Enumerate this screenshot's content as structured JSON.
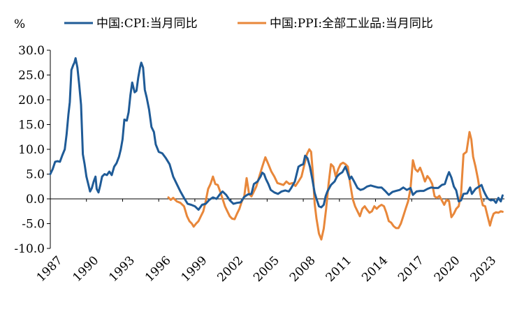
{
  "chart_data": {
    "type": "line",
    "ylabel": "%",
    "ylim": [
      -10,
      30
    ],
    "y_ticks": [
      "30.0",
      "25.0",
      "20.0",
      "15.0",
      "10.0",
      "5.0",
      "0.0",
      "-5.0",
      "-10.0"
    ],
    "y_tick_values": [
      30,
      25,
      20,
      15,
      10,
      5,
      0,
      -5,
      -10
    ],
    "x_range": [
      1987,
      2024.7
    ],
    "x_ticks": [
      "1987",
      "1990",
      "1993",
      "1996",
      "1999",
      "2002",
      "2005",
      "2008",
      "2011",
      "2014",
      "2017",
      "2020",
      "2023"
    ],
    "x_tick_values": [
      1987,
      1990,
      1993,
      1996,
      1999,
      2002,
      2005,
      2008,
      2011,
      2014,
      2017,
      2020,
      2023
    ],
    "series": [
      {
        "name": "中国:CPI:当月同比",
        "color": "#1F5B97",
        "points": [
          [
            1987.0,
            5.0
          ],
          [
            1987.2,
            6.0
          ],
          [
            1987.4,
            7.5
          ],
          [
            1987.6,
            7.6
          ],
          [
            1987.8,
            7.5
          ],
          [
            1988.0,
            8.8
          ],
          [
            1988.2,
            10.0
          ],
          [
            1988.35,
            13.0
          ],
          [
            1988.5,
            17.0
          ],
          [
            1988.62,
            19.5
          ],
          [
            1988.75,
            26.0
          ],
          [
            1988.9,
            27.0
          ],
          [
            1989.0,
            27.5
          ],
          [
            1989.1,
            28.4
          ],
          [
            1989.25,
            26.5
          ],
          [
            1989.4,
            23.0
          ],
          [
            1989.55,
            19.0
          ],
          [
            1989.7,
            9.0
          ],
          [
            1989.85,
            7.0
          ],
          [
            1990.0,
            4.5
          ],
          [
            1990.15,
            3.0
          ],
          [
            1990.3,
            1.5
          ],
          [
            1990.45,
            2.2
          ],
          [
            1990.6,
            3.5
          ],
          [
            1990.75,
            4.5
          ],
          [
            1990.85,
            2.0
          ],
          [
            1991.0,
            1.3
          ],
          [
            1991.15,
            2.8
          ],
          [
            1991.3,
            4.5
          ],
          [
            1991.5,
            5.0
          ],
          [
            1991.7,
            4.8
          ],
          [
            1991.9,
            5.5
          ],
          [
            1992.1,
            4.8
          ],
          [
            1992.3,
            6.5
          ],
          [
            1992.5,
            7.2
          ],
          [
            1992.7,
            8.5
          ],
          [
            1992.85,
            10.0
          ],
          [
            1993.0,
            12.0
          ],
          [
            1993.15,
            16.0
          ],
          [
            1993.35,
            15.8
          ],
          [
            1993.5,
            17.5
          ],
          [
            1993.65,
            21.0
          ],
          [
            1993.8,
            23.5
          ],
          [
            1994.0,
            21.5
          ],
          [
            1994.15,
            21.8
          ],
          [
            1994.3,
            24.5
          ],
          [
            1994.45,
            26.5
          ],
          [
            1994.55,
            27.5
          ],
          [
            1994.7,
            26.5
          ],
          [
            1994.85,
            22.0
          ],
          [
            1995.0,
            20.5
          ],
          [
            1995.2,
            18.0
          ],
          [
            1995.4,
            14.5
          ],
          [
            1995.6,
            13.5
          ],
          [
            1995.75,
            11.0
          ],
          [
            1996.0,
            9.5
          ],
          [
            1996.3,
            9.2
          ],
          [
            1996.6,
            8.2
          ],
          [
            1996.9,
            7.0
          ],
          [
            1997.2,
            4.5
          ],
          [
            1997.5,
            3.0
          ],
          [
            1997.8,
            1.5
          ],
          [
            1998.1,
            0.2
          ],
          [
            1998.4,
            -1.0
          ],
          [
            1998.7,
            -1.2
          ],
          [
            1999.0,
            -1.5
          ],
          [
            1999.3,
            -2.2
          ],
          [
            1999.6,
            -1.2
          ],
          [
            1999.9,
            -1.0
          ],
          [
            2000.2,
            -0.2
          ],
          [
            2000.5,
            0.3
          ],
          [
            2000.8,
            0.0
          ],
          [
            2001.1,
            1.0
          ],
          [
            2001.3,
            1.5
          ],
          [
            2001.6,
            0.8
          ],
          [
            2001.9,
            -0.3
          ],
          [
            2002.2,
            -1.0
          ],
          [
            2002.5,
            -0.8
          ],
          [
            2002.8,
            -0.7
          ],
          [
            2003.1,
            0.4
          ],
          [
            2003.4,
            0.9
          ],
          [
            2003.7,
            1.0
          ],
          [
            2003.9,
            3.0
          ],
          [
            2004.2,
            3.5
          ],
          [
            2004.45,
            4.5
          ],
          [
            2004.6,
            5.3
          ],
          [
            2004.75,
            5.0
          ],
          [
            2004.9,
            4.0
          ],
          [
            2005.1,
            3.0
          ],
          [
            2005.3,
            1.8
          ],
          [
            2005.6,
            1.3
          ],
          [
            2005.9,
            1.0
          ],
          [
            2006.2,
            1.5
          ],
          [
            2006.5,
            1.7
          ],
          [
            2006.8,
            1.5
          ],
          [
            2007.0,
            2.2
          ],
          [
            2007.3,
            3.5
          ],
          [
            2007.6,
            6.5
          ],
          [
            2007.8,
            6.8
          ],
          [
            2008.0,
            7.0
          ],
          [
            2008.15,
            8.7
          ],
          [
            2008.35,
            8.2
          ],
          [
            2008.55,
            6.5
          ],
          [
            2008.75,
            4.0
          ],
          [
            2008.95,
            1.2
          ],
          [
            2009.1,
            0.0
          ],
          [
            2009.3,
            -1.5
          ],
          [
            2009.5,
            -1.7
          ],
          [
            2009.7,
            -1.2
          ],
          [
            2009.85,
            0.5
          ],
          [
            2010.0,
            1.5
          ],
          [
            2010.3,
            2.8
          ],
          [
            2010.6,
            3.5
          ],
          [
            2010.8,
            4.5
          ],
          [
            2011.0,
            5.0
          ],
          [
            2011.25,
            5.4
          ],
          [
            2011.5,
            6.5
          ],
          [
            2011.65,
            5.5
          ],
          [
            2011.85,
            4.0
          ],
          [
            2012.0,
            4.5
          ],
          [
            2012.25,
            3.4
          ],
          [
            2012.5,
            2.2
          ],
          [
            2012.75,
            1.8
          ],
          [
            2013.0,
            2.0
          ],
          [
            2013.3,
            2.5
          ],
          [
            2013.6,
            2.7
          ],
          [
            2013.9,
            2.5
          ],
          [
            2014.2,
            2.3
          ],
          [
            2014.5,
            2.3
          ],
          [
            2014.8,
            1.6
          ],
          [
            2015.1,
            0.8
          ],
          [
            2015.4,
            1.4
          ],
          [
            2015.7,
            1.6
          ],
          [
            2016.0,
            1.8
          ],
          [
            2016.3,
            2.3
          ],
          [
            2016.6,
            1.8
          ],
          [
            2016.9,
            2.2
          ],
          [
            2017.1,
            0.8
          ],
          [
            2017.4,
            1.5
          ],
          [
            2017.7,
            1.6
          ],
          [
            2018.0,
            1.6
          ],
          [
            2018.3,
            2.0
          ],
          [
            2018.6,
            2.3
          ],
          [
            2018.9,
            2.2
          ],
          [
            2019.2,
            2.2
          ],
          [
            2019.5,
            2.8
          ],
          [
            2019.75,
            3.0
          ],
          [
            2019.95,
            4.5
          ],
          [
            2020.1,
            5.4
          ],
          [
            2020.3,
            4.3
          ],
          [
            2020.5,
            2.5
          ],
          [
            2020.7,
            1.7
          ],
          [
            2020.9,
            -0.5
          ],
          [
            2021.1,
            -0.3
          ],
          [
            2021.3,
            1.0
          ],
          [
            2021.6,
            1.1
          ],
          [
            2021.85,
            2.3
          ],
          [
            2022.0,
            1.0
          ],
          [
            2022.3,
            2.0
          ],
          [
            2022.6,
            2.5
          ],
          [
            2022.8,
            2.8
          ],
          [
            2022.95,
            1.8
          ],
          [
            2023.1,
            1.0
          ],
          [
            2023.3,
            0.1
          ],
          [
            2023.55,
            -0.3
          ],
          [
            2023.8,
            -0.2
          ],
          [
            2024.0,
            -0.8
          ],
          [
            2024.2,
            0.2
          ],
          [
            2024.4,
            -0.5
          ],
          [
            2024.55,
            0.7
          ]
        ]
      },
      {
        "name": "中国:PPI:全部工业品:当月同比",
        "color": "#E8873A",
        "points": [
          [
            1996.8,
            0.3
          ],
          [
            1997.0,
            -0.2
          ],
          [
            1997.2,
            0.2
          ],
          [
            1997.5,
            -0.5
          ],
          [
            1997.8,
            -0.8
          ],
          [
            1998.1,
            -1.5
          ],
          [
            1998.35,
            -3.5
          ],
          [
            1998.55,
            -4.5
          ],
          [
            1998.75,
            -5.0
          ],
          [
            1998.9,
            -5.6
          ],
          [
            1999.1,
            -5.0
          ],
          [
            1999.3,
            -4.5
          ],
          [
            1999.5,
            -3.5
          ],
          [
            1999.7,
            -2.5
          ],
          [
            1999.9,
            -0.5
          ],
          [
            2000.1,
            2.0
          ],
          [
            2000.3,
            3.0
          ],
          [
            2000.5,
            4.5
          ],
          [
            2000.7,
            3.0
          ],
          [
            2000.9,
            2.8
          ],
          [
            2001.1,
            1.5
          ],
          [
            2001.3,
            0.0
          ],
          [
            2001.5,
            -1.5
          ],
          [
            2001.7,
            -2.5
          ],
          [
            2001.9,
            -3.5
          ],
          [
            2002.1,
            -4.0
          ],
          [
            2002.3,
            -4.1
          ],
          [
            2002.5,
            -3.0
          ],
          [
            2002.7,
            -2.0
          ],
          [
            2002.9,
            -0.5
          ],
          [
            2003.1,
            0.5
          ],
          [
            2003.3,
            4.2
          ],
          [
            2003.5,
            1.0
          ],
          [
            2003.7,
            0.5
          ],
          [
            2003.9,
            1.5
          ],
          [
            2004.1,
            2.5
          ],
          [
            2004.35,
            4.5
          ],
          [
            2004.6,
            6.5
          ],
          [
            2004.85,
            8.4
          ],
          [
            2005.1,
            7.0
          ],
          [
            2005.35,
            5.5
          ],
          [
            2005.6,
            4.5
          ],
          [
            2005.85,
            3.2
          ],
          [
            2006.1,
            3.0
          ],
          [
            2006.35,
            2.8
          ],
          [
            2006.6,
            3.5
          ],
          [
            2006.85,
            3.0
          ],
          [
            2007.1,
            3.2
          ],
          [
            2007.35,
            2.6
          ],
          [
            2007.6,
            3.5
          ],
          [
            2007.85,
            4.5
          ],
          [
            2008.1,
            7.0
          ],
          [
            2008.3,
            9.0
          ],
          [
            2008.5,
            10.0
          ],
          [
            2008.65,
            9.5
          ],
          [
            2008.8,
            5.0
          ],
          [
            2008.95,
            -1.0
          ],
          [
            2009.1,
            -4.0
          ],
          [
            2009.3,
            -7.0
          ],
          [
            2009.5,
            -8.2
          ],
          [
            2009.7,
            -6.0
          ],
          [
            2009.9,
            -2.0
          ],
          [
            2010.1,
            3.0
          ],
          [
            2010.3,
            7.0
          ],
          [
            2010.5,
            6.5
          ],
          [
            2010.7,
            4.5
          ],
          [
            2010.9,
            6.0
          ],
          [
            2011.1,
            7.0
          ],
          [
            2011.3,
            7.3
          ],
          [
            2011.5,
            7.0
          ],
          [
            2011.7,
            6.5
          ],
          [
            2011.9,
            3.0
          ],
          [
            2012.1,
            0.0
          ],
          [
            2012.3,
            -1.5
          ],
          [
            2012.5,
            -2.5
          ],
          [
            2012.7,
            -3.5
          ],
          [
            2012.9,
            -2.0
          ],
          [
            2013.1,
            -1.5
          ],
          [
            2013.3,
            -2.2
          ],
          [
            2013.5,
            -2.8
          ],
          [
            2013.7,
            -2.5
          ],
          [
            2013.9,
            -1.5
          ],
          [
            2014.1,
            -2.0
          ],
          [
            2014.3,
            -1.5
          ],
          [
            2014.5,
            -1.2
          ],
          [
            2014.7,
            -1.5
          ],
          [
            2014.9,
            -2.8
          ],
          [
            2015.1,
            -4.5
          ],
          [
            2015.3,
            -4.8
          ],
          [
            2015.5,
            -5.5
          ],
          [
            2015.7,
            -5.9
          ],
          [
            2015.9,
            -5.9
          ],
          [
            2016.1,
            -5.0
          ],
          [
            2016.3,
            -3.5
          ],
          [
            2016.5,
            -2.0
          ],
          [
            2016.7,
            -0.5
          ],
          [
            2016.9,
            2.0
          ],
          [
            2017.1,
            7.8
          ],
          [
            2017.3,
            6.0
          ],
          [
            2017.5,
            5.5
          ],
          [
            2017.7,
            6.3
          ],
          [
            2017.9,
            5.0
          ],
          [
            2018.1,
            3.5
          ],
          [
            2018.3,
            4.6
          ],
          [
            2018.5,
            4.0
          ],
          [
            2018.7,
            3.0
          ],
          [
            2018.9,
            0.5
          ],
          [
            2019.1,
            0.2
          ],
          [
            2019.3,
            0.6
          ],
          [
            2019.5,
            -0.3
          ],
          [
            2019.7,
            -1.2
          ],
          [
            2019.9,
            -0.2
          ],
          [
            2020.1,
            -0.4
          ],
          [
            2020.3,
            -3.7
          ],
          [
            2020.5,
            -3.0
          ],
          [
            2020.7,
            -2.0
          ],
          [
            2020.9,
            -1.5
          ],
          [
            2021.1,
            1.0
          ],
          [
            2021.3,
            9.0
          ],
          [
            2021.55,
            9.5
          ],
          [
            2021.8,
            13.5
          ],
          [
            2021.95,
            12.0
          ],
          [
            2022.1,
            8.5
          ],
          [
            2022.3,
            6.5
          ],
          [
            2022.5,
            4.0
          ],
          [
            2022.7,
            1.0
          ],
          [
            2022.9,
            -1.3
          ],
          [
            2023.1,
            -1.5
          ],
          [
            2023.3,
            -3.5
          ],
          [
            2023.5,
            -5.4
          ],
          [
            2023.65,
            -4.0
          ],
          [
            2023.8,
            -3.0
          ],
          [
            2024.0,
            -2.7
          ],
          [
            2024.2,
            -2.8
          ],
          [
            2024.4,
            -2.5
          ],
          [
            2024.55,
            -2.6
          ]
        ]
      }
    ]
  }
}
